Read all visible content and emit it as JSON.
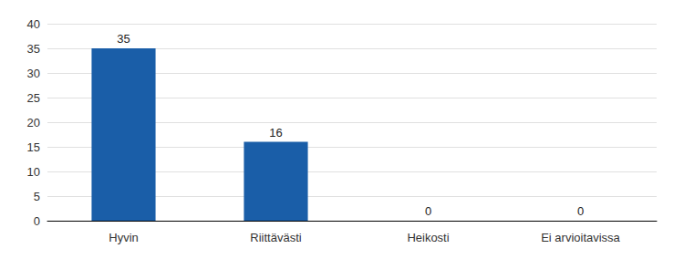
{
  "chart_data": {
    "type": "bar",
    "categories": [
      "Hyvin",
      "Riittävästi",
      "Heikosti",
      "Ei arvioitavissa"
    ],
    "values": [
      35,
      16,
      0,
      0
    ],
    "color": "#1a5ea8",
    "ylim": [
      0,
      40
    ],
    "yticks": [
      0,
      5,
      10,
      15,
      20,
      25,
      30,
      35,
      40
    ],
    "grid": true,
    "data_labels": true
  }
}
